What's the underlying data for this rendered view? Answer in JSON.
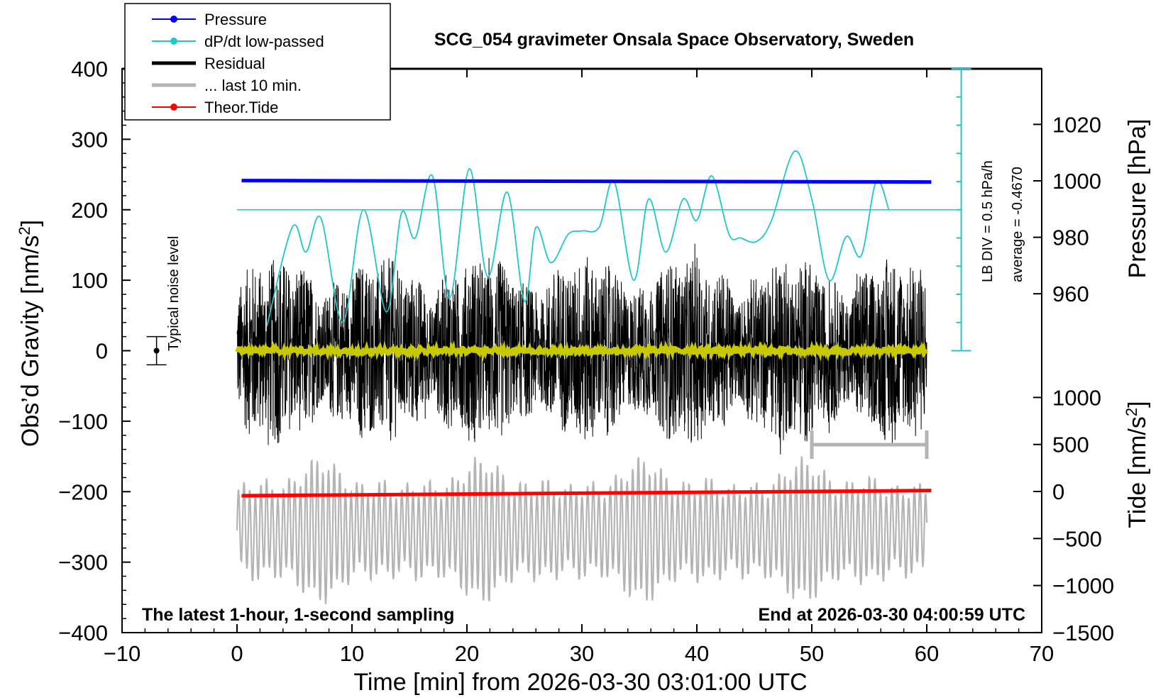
{
  "chart_data": {
    "type": "line",
    "title": "SCG_054 gravimeter Onsala Space Observatory, Sweden",
    "xlabel": "Time [min] from 2026-03-30 03:01:00 UTC",
    "ylabel_left": "Obs’d Gravity [nm/s",
    "ylabel_left_sup": "2",
    "ylabel_left_end": "]",
    "ylabel_right_pressure": "Pressure [hPa]",
    "ylabel_right_tide": "Tide [nm/s",
    "ylabel_right_tide_sup": "2",
    "ylabel_right_tide_end": "]",
    "xlim": [
      -10,
      70
    ],
    "ylim": [
      -400,
      400
    ],
    "x_ticks": [
      "−10",
      "0",
      "10",
      "20",
      "30",
      "40",
      "50",
      "60",
      "70"
    ],
    "y_ticks": [
      "−400",
      "−300",
      "−200",
      "−100",
      "0",
      "100",
      "200",
      "300",
      "400"
    ],
    "pressure_ticks": [
      "960",
      "980",
      "1000",
      "1020"
    ],
    "tide_ticks": [
      "−1500",
      "−1000",
      "−500",
      "0",
      "500",
      "1000"
    ],
    "legend": [
      {
        "label": "Pressure",
        "color": "#0000ff",
        "marker": true
      },
      {
        "label": "dP/dt low-passed",
        "color": "#1ec8c8",
        "marker": true
      },
      {
        "label": "Residual",
        "color": "#000000",
        "marker": false
      },
      {
        "label": "... last 10 min.",
        "color": "#b4b4b4",
        "marker": false
      },
      {
        "label": "Theor.Tide",
        "color": "#ff0000",
        "marker": true
      }
    ],
    "annotations": {
      "bottom_left": "The latest 1-hour, 1-second sampling",
      "bottom_right": "End at 2026-03-30 04:00:59 UTC",
      "noise_label": "Typical noise level",
      "lb_div": "LB DIV = 0.5 hPa/h",
      "average": "average = -0.4670"
    },
    "series": [
      {
        "name": "Pressure",
        "color": "#0000ff",
        "axis": "pressure_hPa",
        "x": [
          0.4,
          60.4
        ],
        "values": [
          1000.1,
          999.6
        ]
      },
      {
        "name": "Theor.Tide",
        "color": "#ff0000",
        "axis": "tide_nm_s2",
        "x": [
          0.4,
          60.4
        ],
        "values": [
          -45,
          10
        ]
      },
      {
        "name": "dP/dt low-passed",
        "color": "#1ec8c8",
        "axis": "gravity_nm_s2",
        "x": [
          2.6,
          4.8,
          6.0,
          7.3,
          9.2,
          11.0,
          13.0,
          14.3,
          15.5,
          17.0,
          18.5,
          20.2,
          21.8,
          23.5,
          25.0,
          26.0,
          27.3,
          28.8,
          30.0,
          31.5,
          32.8,
          34.5,
          35.8,
          37.3,
          38.8,
          40.0,
          41.3,
          42.8,
          43.8,
          45.2,
          46.5,
          48.5,
          50.0,
          51.5,
          53.0,
          54.3,
          55.6,
          56.7
        ],
        "values": [
          35,
          175,
          140,
          188,
          40,
          200,
          55,
          195,
          160,
          248,
          75,
          258,
          105,
          225,
          70,
          175,
          125,
          165,
          170,
          175,
          240,
          100,
          215,
          140,
          215,
          185,
          248,
          165,
          160,
          155,
          185,
          283,
          215,
          100,
          162,
          135,
          240,
          200
        ]
      },
      {
        "name": "Residual",
        "color": "#000000",
        "axis": "gravity_nm_s2",
        "x_range": [
          0,
          60
        ],
        "envelope": [
          -150,
          170
        ]
      },
      {
        "name": "... last 10 min.",
        "color": "#b4b4b4",
        "axis": "gravity_nm_s2",
        "x_range": [
          0,
          60
        ],
        "envelope": [
          -360,
          -150
        ]
      }
    ],
    "lb_div_scale_gravity": [
      0,
      400
    ]
  }
}
